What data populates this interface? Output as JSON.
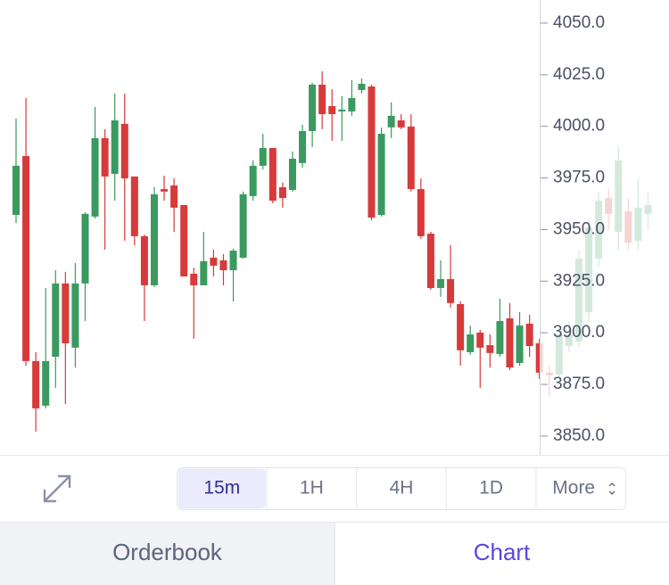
{
  "chart_data": {
    "type": "candlestick",
    "up_color": "#3a9a5f",
    "down_color": "#d63a3a",
    "ylim": [
      3840.9,
      4061.2
    ],
    "yticks": [
      {
        "value": 3850,
        "label": "3850.0"
      },
      {
        "value": 3875,
        "label": "3875.0"
      },
      {
        "value": 3900,
        "label": "3900.0"
      },
      {
        "value": 3925,
        "label": "3925.0"
      },
      {
        "value": 3950,
        "label": "3950.0"
      },
      {
        "value": 3975,
        "label": "3975.0"
      },
      {
        "value": 4000,
        "label": "4000.0"
      },
      {
        "value": 4025,
        "label": "4025.0"
      },
      {
        "value": 4050,
        "label": "4050.0"
      }
    ],
    "open": [
      3957.1,
      3985.6,
      3886.3,
      3864.7,
      3888.4,
      3923.9,
      3892.8,
      3923.9,
      3956.3,
      3994.3,
      3977.0,
      4001.2,
      3975.7,
      3946.8,
      3923.0,
      3969.6,
      3971.4,
      3961.9,
      3928.6,
      3923.0,
      3936.4,
      3935.1,
      3930.3,
      3936.4,
      3966.2,
      3980.9,
      3989.5,
      3970.5,
      3969.2,
      3982.2,
      3997.7,
      4020.2,
      4009.8,
      4007.2,
      4007.2,
      4017.6,
      4019.3,
      3957.1,
      3999.5,
      4002.9,
      3999.9,
      3969.6,
      3948.0,
      3921.7,
      3926.0,
      3913.9,
      3890.6,
      3900.1,
      3894.0,
      3889.7,
      3907.0,
      3885.4,
      3904.4,
      3894.9,
      3880.7,
      3879.8,
      3893.6,
      3895.8,
      3910.0,
      3935.9,
      3965.3,
      3948.9,
      3958.8,
      3944.6,
      3957.6
    ],
    "high": [
      4003.8,
      4013.7,
      3890.6,
      3921.7,
      3930.3,
      3929.5,
      3933.8,
      3958.4,
      4009.4,
      3998.6,
      4015.9,
      4015.9,
      3975.7,
      3947.6,
      3970.5,
      3976.1,
      3974.8,
      3961.9,
      3931.6,
      3948.9,
      3940.3,
      3938.1,
      3940.7,
      3968.4,
      3983.5,
      3996.4,
      3989.5,
      3972.7,
      3987.8,
      4000.8,
      4021.1,
      4026.7,
      4018.0,
      4014.6,
      4022.4,
      4023.2,
      4020.2,
      3999.5,
      4011.6,
      4005.9,
      4005.9,
      3974.8,
      3948.9,
      3935.1,
      3942.4,
      3915.2,
      3903.5,
      3901.4,
      3899.2,
      3916.5,
      3914.4,
      3910.0,
      3908.7,
      3897.1,
      3884.1,
      3901.4,
      3905.7,
      3940.0,
      3955.0,
      3968.0,
      3970.0,
      3990.0,
      3965.0,
      3975.0,
      3968.0
    ],
    "low": [
      3953.2,
      3884.1,
      3852.1,
      3863.4,
      3873.3,
      3865.5,
      3883.2,
      3905.7,
      3955.4,
      3940.3,
      3964.0,
      3944.6,
      3942.4,
      3905.7,
      3922.1,
      3964.0,
      3948.9,
      3927.3,
      3897.1,
      3923.0,
      3927.3,
      3923.0,
      3915.2,
      3935.9,
      3964.0,
      3979.2,
      3962.7,
      3960.6,
      3968.4,
      3980.0,
      3990.0,
      3998.6,
      3993.0,
      3993.0,
      4005.1,
      4015.9,
      3954.5,
      3956.3,
      3994.3,
      3998.6,
      3968.4,
      3945.5,
      3920.8,
      3917.4,
      3912.2,
      3884.1,
      3889.3,
      3873.3,
      3883.2,
      3888.4,
      3881.9,
      3884.1,
      3888.4,
      3877.6,
      3869.0,
      3877.6,
      3890.6,
      3893.0,
      3905.0,
      3932.0,
      3950.0,
      3940.0,
      3940.0,
      3940.0,
      3950.0
    ],
    "close": [
      3980.9,
      3886.3,
      3863.4,
      3886.3,
      3923.9,
      3894.9,
      3923.9,
      3957.6,
      3994.3,
      3975.7,
      4002.9,
      3974.8,
      3946.8,
      3923.0,
      3967.1,
      3968.4,
      3960.6,
      3927.3,
      3923.0,
      3934.7,
      3932.5,
      3930.3,
      3939.8,
      3967.1,
      3980.9,
      3989.5,
      3964.0,
      3965.3,
      3984.3,
      3997.7,
      4020.2,
      4005.9,
      4005.9,
      4008.1,
      4013.7,
      4020.6,
      3955.8,
      3996.4,
      4005.1,
      3999.5,
      3969.6,
      3946.8,
      3921.7,
      3926.0,
      3914.4,
      3891.5,
      3899.2,
      3892.8,
      3890.2,
      3905.7,
      3883.2,
      3903.5,
      3893.6,
      3880.7,
      3879.4,
      3899.2,
      3899.2,
      3935.9,
      3951.1,
      3964.0,
      3957.6,
      3983.5,
      3943.7,
      3960.6,
      3961.9
    ]
  },
  "toolbar": {
    "timeframes": [
      "15m",
      "1H",
      "4H",
      "1D",
      "More"
    ],
    "selected": 0
  },
  "tabs": {
    "items": [
      "Orderbook",
      "Chart"
    ],
    "active": 1
  }
}
